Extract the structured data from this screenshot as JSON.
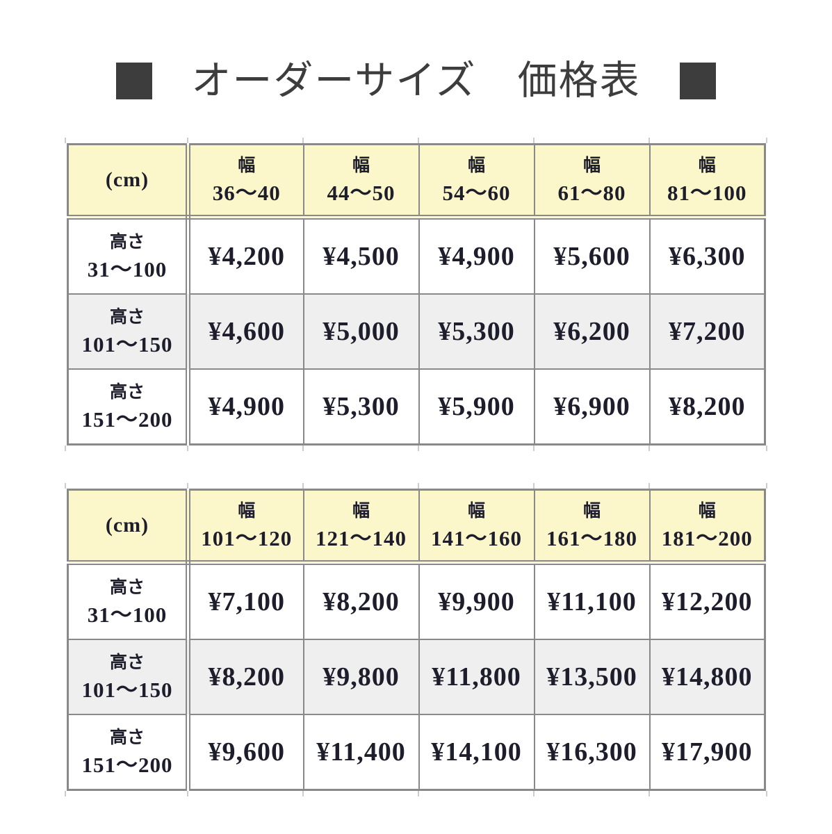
{
  "page": {
    "background": "#ffffff"
  },
  "colors": {
    "title": "#3d3d3d",
    "border": "#898989",
    "header_bg": "#fbf7cb",
    "row_bg": "#ffffff",
    "row_alt_bg": "#efefef",
    "text": "#1d1d2b",
    "gridline_artifact": "#cccccc"
  },
  "title": {
    "text": "オーダーサイズ　価格表"
  },
  "table1": {
    "corner_label": "(cm)",
    "width_label": "幅",
    "height_label": "高さ",
    "col_ranges": [
      "36〜40",
      "44〜50",
      "54〜60",
      "61〜80",
      "81〜100"
    ],
    "row_ranges": [
      "31〜100",
      "101〜150",
      "151〜200"
    ],
    "prices": [
      [
        "¥4,200",
        "¥4,500",
        "¥4,900",
        "¥5,600",
        "¥6,300"
      ],
      [
        "¥4,600",
        "¥5,000",
        "¥5,300",
        "¥6,200",
        "¥7,200"
      ],
      [
        "¥4,900",
        "¥5,300",
        "¥5,900",
        "¥6,900",
        "¥8,200"
      ]
    ]
  },
  "table2": {
    "corner_label": "(cm)",
    "width_label": "幅",
    "height_label": "高さ",
    "col_ranges": [
      "101〜120",
      "121〜140",
      "141〜160",
      "161〜180",
      "181〜200"
    ],
    "row_ranges": [
      "31〜100",
      "101〜150",
      "151〜200"
    ],
    "prices": [
      [
        "¥7,100",
        "¥8,200",
        "¥9,900",
        "¥11,100",
        "¥12,200"
      ],
      [
        "¥8,200",
        "¥9,800",
        "¥11,800",
        "¥13,500",
        "¥14,800"
      ],
      [
        "¥9,600",
        "¥11,400",
        "¥14,100",
        "¥16,300",
        "¥17,900"
      ]
    ]
  }
}
